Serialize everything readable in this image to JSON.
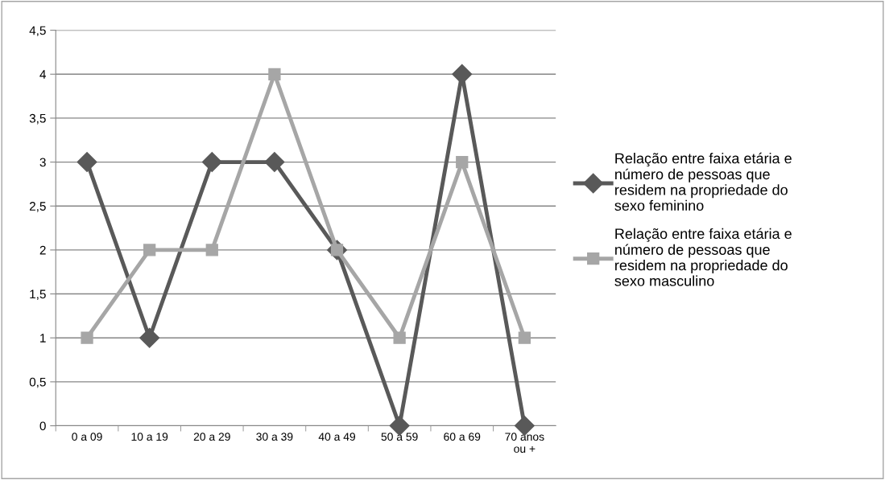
{
  "chart_data": {
    "type": "line",
    "categories": [
      "0 a 09",
      "10 a 19",
      "20 a 29",
      "30 a 39",
      "40 a 49",
      "50 a 59",
      "60 a 69",
      "70 anos\nou +"
    ],
    "series": [
      {
        "name": "Relação entre faixa etária e\nnúmero de pessoas que\nresidem na propriedade do\nsexo feminino",
        "color": "#595959",
        "marker": "diamond",
        "values": [
          3,
          1,
          3,
          3,
          2,
          0,
          4,
          0
        ]
      },
      {
        "name": "Relação entre faixa etária e\nnúmero de pessoas que\nresidem na propriedade do\nsexo masculino",
        "color": "#a6a6a6",
        "marker": "square",
        "values": [
          1,
          2,
          2,
          4,
          2,
          1,
          3,
          1
        ]
      }
    ],
    "ylim": [
      0,
      4.5
    ],
    "yticks": [
      {
        "value": 0,
        "label": "0"
      },
      {
        "value": 0.5,
        "label": "0,5"
      },
      {
        "value": 1,
        "label": "1"
      },
      {
        "value": 1.5,
        "label": "1,5"
      },
      {
        "value": 2,
        "label": "2"
      },
      {
        "value": 2.5,
        "label": "2,5"
      },
      {
        "value": 3,
        "label": "3"
      },
      {
        "value": 3.5,
        "label": "3,5"
      },
      {
        "value": 4,
        "label": "4"
      },
      {
        "value": 4.5,
        "label": "4,5"
      }
    ],
    "grid": "y",
    "legend": "right",
    "line_style": "solid"
  }
}
